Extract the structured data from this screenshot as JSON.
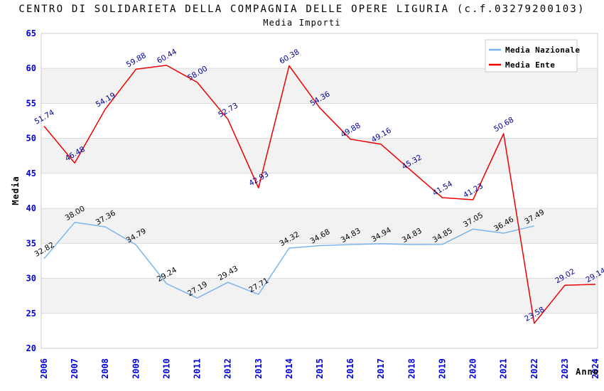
{
  "header": {
    "title": "CENTRO DI SOLIDARIETA DELLA COMPAGNIA DELLE OPERE LIGURIA (c.f.03279200103)",
    "subtitle": "Media Importi"
  },
  "chart_data": {
    "type": "line",
    "title": "CENTRO DI SOLIDARIETA DELLA COMPAGNIA DELLE OPERE LIGURIA (c.f.03279200103)",
    "subtitle": "Media Importi",
    "xlabel": "Anno",
    "ylabel": "Media",
    "ylim": [
      20,
      65
    ],
    "ytick_step": 5,
    "grid": true,
    "band_color": "#f2f2f2",
    "gridline_color": "#dcdcdc",
    "border_color": "#cccccc",
    "axis_tick_color": "#0000dd",
    "legend_position": "top-right",
    "x": [
      "2006",
      "2007",
      "2008",
      "2009",
      "2010",
      "2011",
      "2012",
      "2013",
      "2014",
      "2015",
      "2016",
      "2017",
      "2018",
      "2019",
      "2020",
      "2021",
      "2022",
      "2023",
      "2024"
    ],
    "series": [
      {
        "name": "Media Nazionale",
        "color": "#7cb5ec",
        "label_color": "#000000",
        "values": [
          32.82,
          38.0,
          37.36,
          34.79,
          29.24,
          27.19,
          29.43,
          27.71,
          34.32,
          34.68,
          34.83,
          34.94,
          34.83,
          34.85,
          37.05,
          36.46,
          37.49,
          null,
          null
        ]
      },
      {
        "name": "Media Ente",
        "color": "#ee0000",
        "label_color": "#000099",
        "values": [
          51.74,
          46.48,
          54.19,
          59.88,
          60.44,
          58.0,
          52.73,
          42.93,
          60.38,
          54.36,
          49.88,
          49.16,
          45.32,
          41.54,
          41.23,
          50.68,
          23.58,
          29.02,
          29.14
        ]
      }
    ]
  }
}
